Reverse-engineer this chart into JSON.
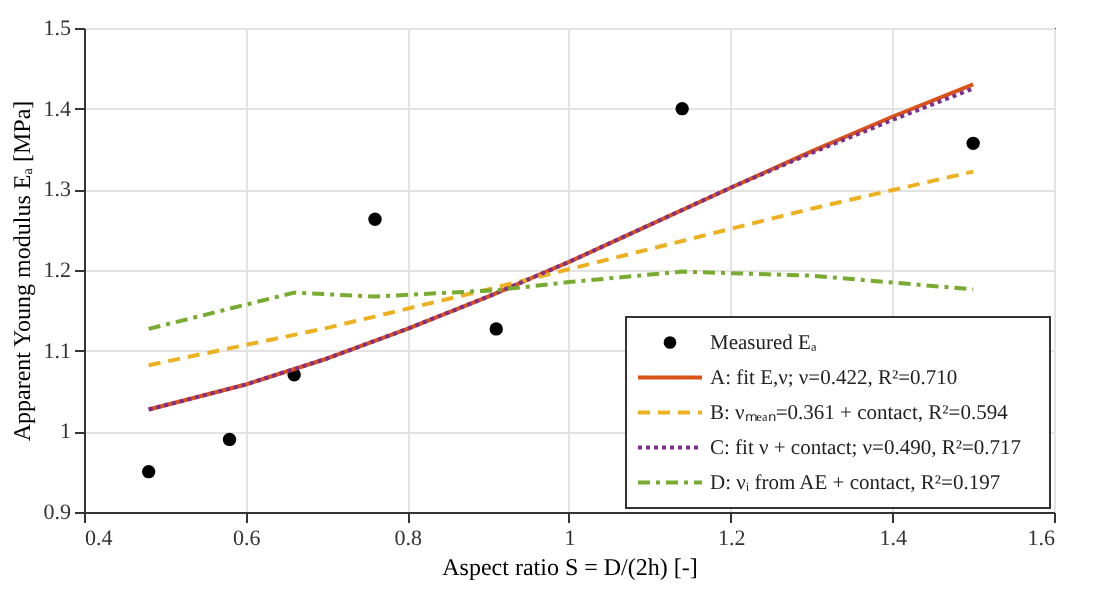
{
  "chart_data": {
    "type": "line",
    "xlabel": "Aspect ratio S = D/(2h) [-]",
    "ylabel": "Apparent Young modulus Eₐ [MPa]",
    "xlim": [
      0.4,
      1.6
    ],
    "xticks": [
      0.4,
      0.6,
      0.8,
      {
        "value": 1,
        "label": "1"
      },
      1.2,
      1.4,
      1.6
    ],
    "ylim": [
      0.9,
      1.5
    ],
    "yticks": [
      0.9,
      1,
      1.1,
      1.2,
      1.3,
      1.4,
      1.5
    ],
    "grid": true,
    "legend": "bottom right",
    "series": [
      {
        "name": "Measured Eₐ",
        "type": "scatter",
        "marker": "circle",
        "color": "#000000",
        "x": [
          0.48,
          0.58,
          0.66,
          0.76,
          0.91,
          1.14,
          1.5
        ],
        "values": [
          0.95,
          0.99,
          1.07,
          1.263,
          1.127,
          1.4,
          1.357
        ]
      },
      {
        "name": "A: fit E,ν; ν=0.422, R²=0.710",
        "line_style": "solid",
        "color": "#d95319",
        "x": [
          0.48,
          0.6,
          0.7,
          0.8,
          0.9,
          1.0,
          1.1,
          1.2,
          1.3,
          1.4,
          1.5
        ],
        "values": [
          1.027,
          1.058,
          1.09,
          1.127,
          1.167,
          1.21,
          1.256,
          1.302,
          1.347,
          1.39,
          1.43
        ]
      },
      {
        "name": "B: νₘₑₐₙ=0.361 + contact, R²=0.594",
        "line_style": "dashed",
        "color": "#edb120",
        "x": [
          0.48,
          0.7,
          0.9,
          1.1,
          1.3,
          1.5
        ],
        "values": [
          1.082,
          1.128,
          1.176,
          1.226,
          1.276,
          1.322
        ]
      },
      {
        "name": "C: fit ν + contact; ν=0.490, R²=0.717",
        "line_style": "dotted",
        "color": "#7e2f8e",
        "x": [
          0.48,
          0.6,
          0.7,
          0.8,
          0.9,
          1.0,
          1.1,
          1.2,
          1.3,
          1.4,
          1.5
        ],
        "values": [
          1.027,
          1.058,
          1.09,
          1.127,
          1.167,
          1.21,
          1.256,
          1.302,
          1.345,
          1.386,
          1.425
        ]
      },
      {
        "name": "D: νᵢ from AE + contact, R²=0.197",
        "line_style": "dashdot",
        "color": "#77ac30",
        "x": [
          0.48,
          0.66,
          0.76,
          0.91,
          1.0,
          1.14,
          1.3,
          1.5
        ],
        "values": [
          1.127,
          1.172,
          1.167,
          1.175,
          1.185,
          1.198,
          1.193,
          1.176
        ]
      }
    ]
  }
}
